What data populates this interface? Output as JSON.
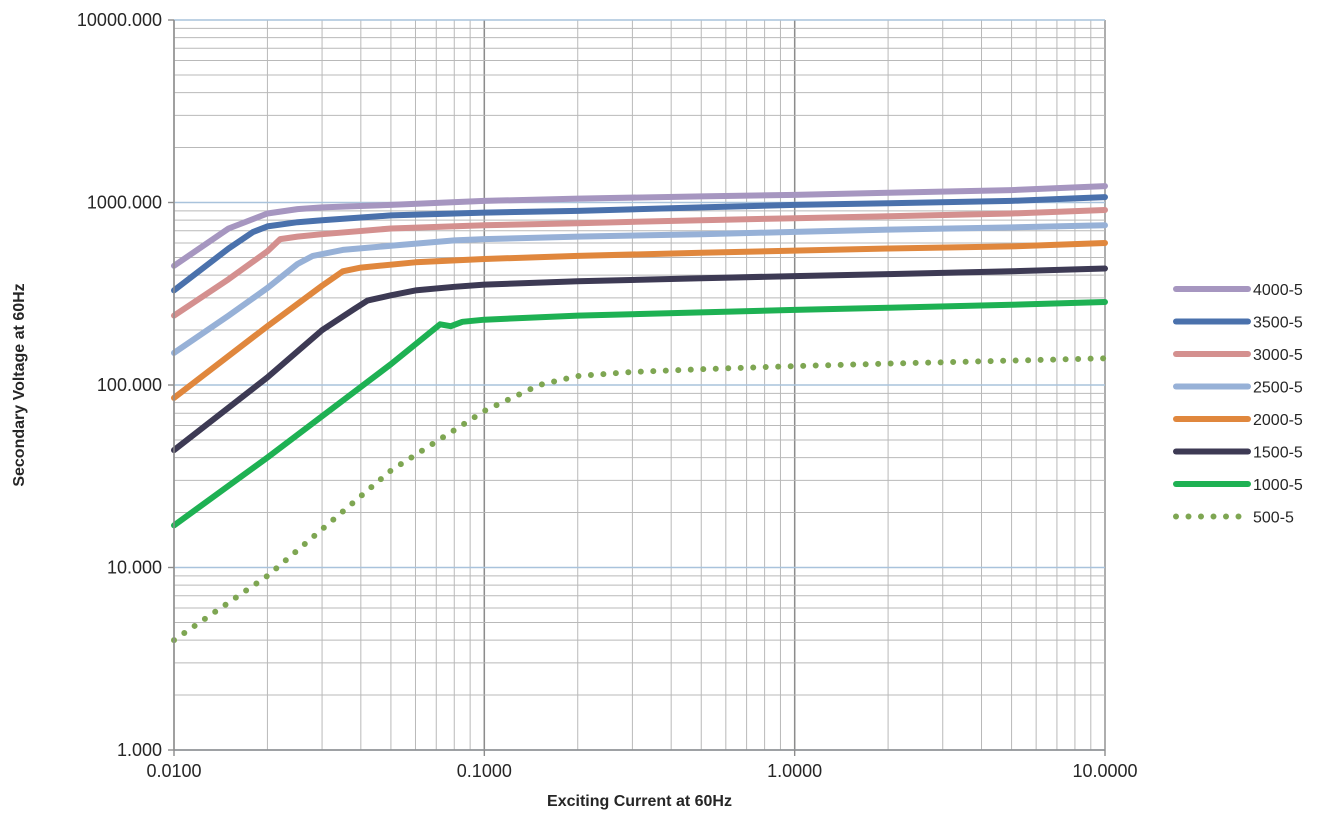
{
  "chart_data": {
    "type": "line",
    "xlabel": "Exciting Current at 60Hz",
    "ylabel": "Secondary Voltage at 60Hz",
    "x_scale": "log",
    "y_scale": "log",
    "xlim": [
      0.01,
      10
    ],
    "ylim": [
      1,
      10000
    ],
    "x_ticks": [
      {
        "value": 0.01,
        "label": "0.0100"
      },
      {
        "value": 0.1,
        "label": "0.1000"
      },
      {
        "value": 1,
        "label": "1.0000"
      },
      {
        "value": 10,
        "label": "10.0000"
      }
    ],
    "y_ticks": [
      {
        "value": 1,
        "label": "1.000"
      },
      {
        "value": 10,
        "label": "10.000"
      },
      {
        "value": 100,
        "label": "100.000"
      },
      {
        "value": 1000,
        "label": "1000.000"
      },
      {
        "value": 10000,
        "label": "10000.000"
      }
    ],
    "grid": true,
    "legend_position": "right",
    "series": [
      {
        "name": "4000-5",
        "color": "#a696c0",
        "style": "solid",
        "x": [
          0.01,
          0.015,
          0.02,
          0.025,
          0.03,
          0.05,
          0.1,
          0.2,
          0.5,
          1,
          2,
          5,
          10
        ],
        "y": [
          450,
          720,
          870,
          920,
          940,
          970,
          1020,
          1050,
          1080,
          1100,
          1130,
          1170,
          1230
        ]
      },
      {
        "name": "3500-5",
        "color": "#4a71ac",
        "style": "solid",
        "x": [
          0.01,
          0.015,
          0.018,
          0.02,
          0.025,
          0.03,
          0.05,
          0.1,
          0.2,
          0.5,
          1,
          2,
          5,
          10
        ],
        "y": [
          330,
          560,
          690,
          740,
          780,
          800,
          850,
          880,
          900,
          940,
          970,
          990,
          1020,
          1070
        ]
      },
      {
        "name": "3000-5",
        "color": "#d4908f",
        "style": "solid",
        "x": [
          0.01,
          0.015,
          0.02,
          0.022,
          0.025,
          0.03,
          0.05,
          0.1,
          0.2,
          0.5,
          1,
          2,
          5,
          10
        ],
        "y": [
          240,
          380,
          540,
          630,
          650,
          670,
          720,
          750,
          770,
          800,
          820,
          840,
          870,
          910
        ]
      },
      {
        "name": "2500-5",
        "color": "#97b1d7",
        "style": "solid",
        "x": [
          0.01,
          0.015,
          0.02,
          0.025,
          0.028,
          0.035,
          0.05,
          0.08,
          0.1,
          0.2,
          0.5,
          1,
          2,
          5,
          10
        ],
        "y": [
          150,
          240,
          340,
          460,
          510,
          550,
          580,
          620,
          630,
          650,
          670,
          690,
          710,
          730,
          750
        ]
      },
      {
        "name": "2000-5",
        "color": "#e0873d",
        "style": "solid",
        "x": [
          0.01,
          0.02,
          0.03,
          0.035,
          0.04,
          0.06,
          0.1,
          0.2,
          0.5,
          1,
          2,
          5,
          10
        ],
        "y": [
          85,
          210,
          350,
          420,
          440,
          470,
          490,
          510,
          530,
          545,
          560,
          575,
          600
        ]
      },
      {
        "name": "1500-5",
        "color": "#3d3a54",
        "style": "solid",
        "x": [
          0.01,
          0.02,
          0.03,
          0.038,
          0.042,
          0.05,
          0.06,
          0.08,
          0.1,
          0.2,
          0.5,
          1,
          2,
          5,
          10
        ],
        "y": [
          44,
          110,
          200,
          260,
          290,
          310,
          330,
          345,
          355,
          370,
          385,
          395,
          405,
          420,
          435
        ]
      },
      {
        "name": "1000-5",
        "color": "#1eb153",
        "style": "solid",
        "x": [
          0.01,
          0.02,
          0.05,
          0.072,
          0.078,
          0.085,
          0.1,
          0.2,
          0.5,
          1,
          2,
          5,
          10
        ],
        "y": [
          17,
          40,
          130,
          215,
          210,
          222,
          228,
          240,
          250,
          258,
          265,
          275,
          285
        ]
      },
      {
        "name": "500-5",
        "color": "#7ea652",
        "style": "dotted",
        "x": [
          0.01,
          0.02,
          0.05,
          0.1,
          0.15,
          0.2,
          0.3,
          0.5,
          1,
          2,
          5,
          10
        ],
        "y": [
          4,
          9,
          34,
          72,
          100,
          112,
          118,
          122,
          127,
          131,
          136,
          140
        ]
      }
    ]
  }
}
